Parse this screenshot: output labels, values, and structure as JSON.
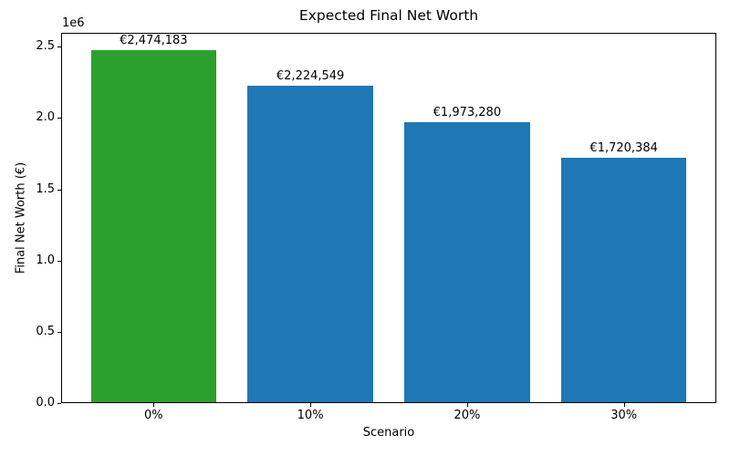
{
  "chart_data": {
    "type": "bar",
    "title": "Expected Final Net Worth",
    "xlabel": "Scenario",
    "ylabel": "Final Net Worth (€)",
    "categories": [
      "0%",
      "10%",
      "20%",
      "30%"
    ],
    "values": [
      2474183,
      2224549,
      1973280,
      1720384
    ],
    "bar_labels": [
      "€2,474,183",
      "€2,224,549",
      "€1,973,280",
      "€1,720,384"
    ],
    "bar_colors": [
      "#2ca02c",
      "#1f77b4",
      "#1f77b4",
      "#1f77b4"
    ],
    "bar_width": 0.8,
    "xlim": [
      -0.59,
      3.59
    ],
    "ylim": [
      0,
      2597892
    ],
    "yticks": [
      0,
      500000,
      1000000,
      1500000,
      2000000,
      2500000
    ],
    "ytick_labels": [
      "0.0",
      "0.5",
      "1.0",
      "1.5",
      "2.0",
      "2.5"
    ],
    "y_offset_text": "1e6",
    "grid": false,
    "legend_position": "none",
    "accent_green": "#2ca02c",
    "default_blue": "#1f77b4"
  }
}
